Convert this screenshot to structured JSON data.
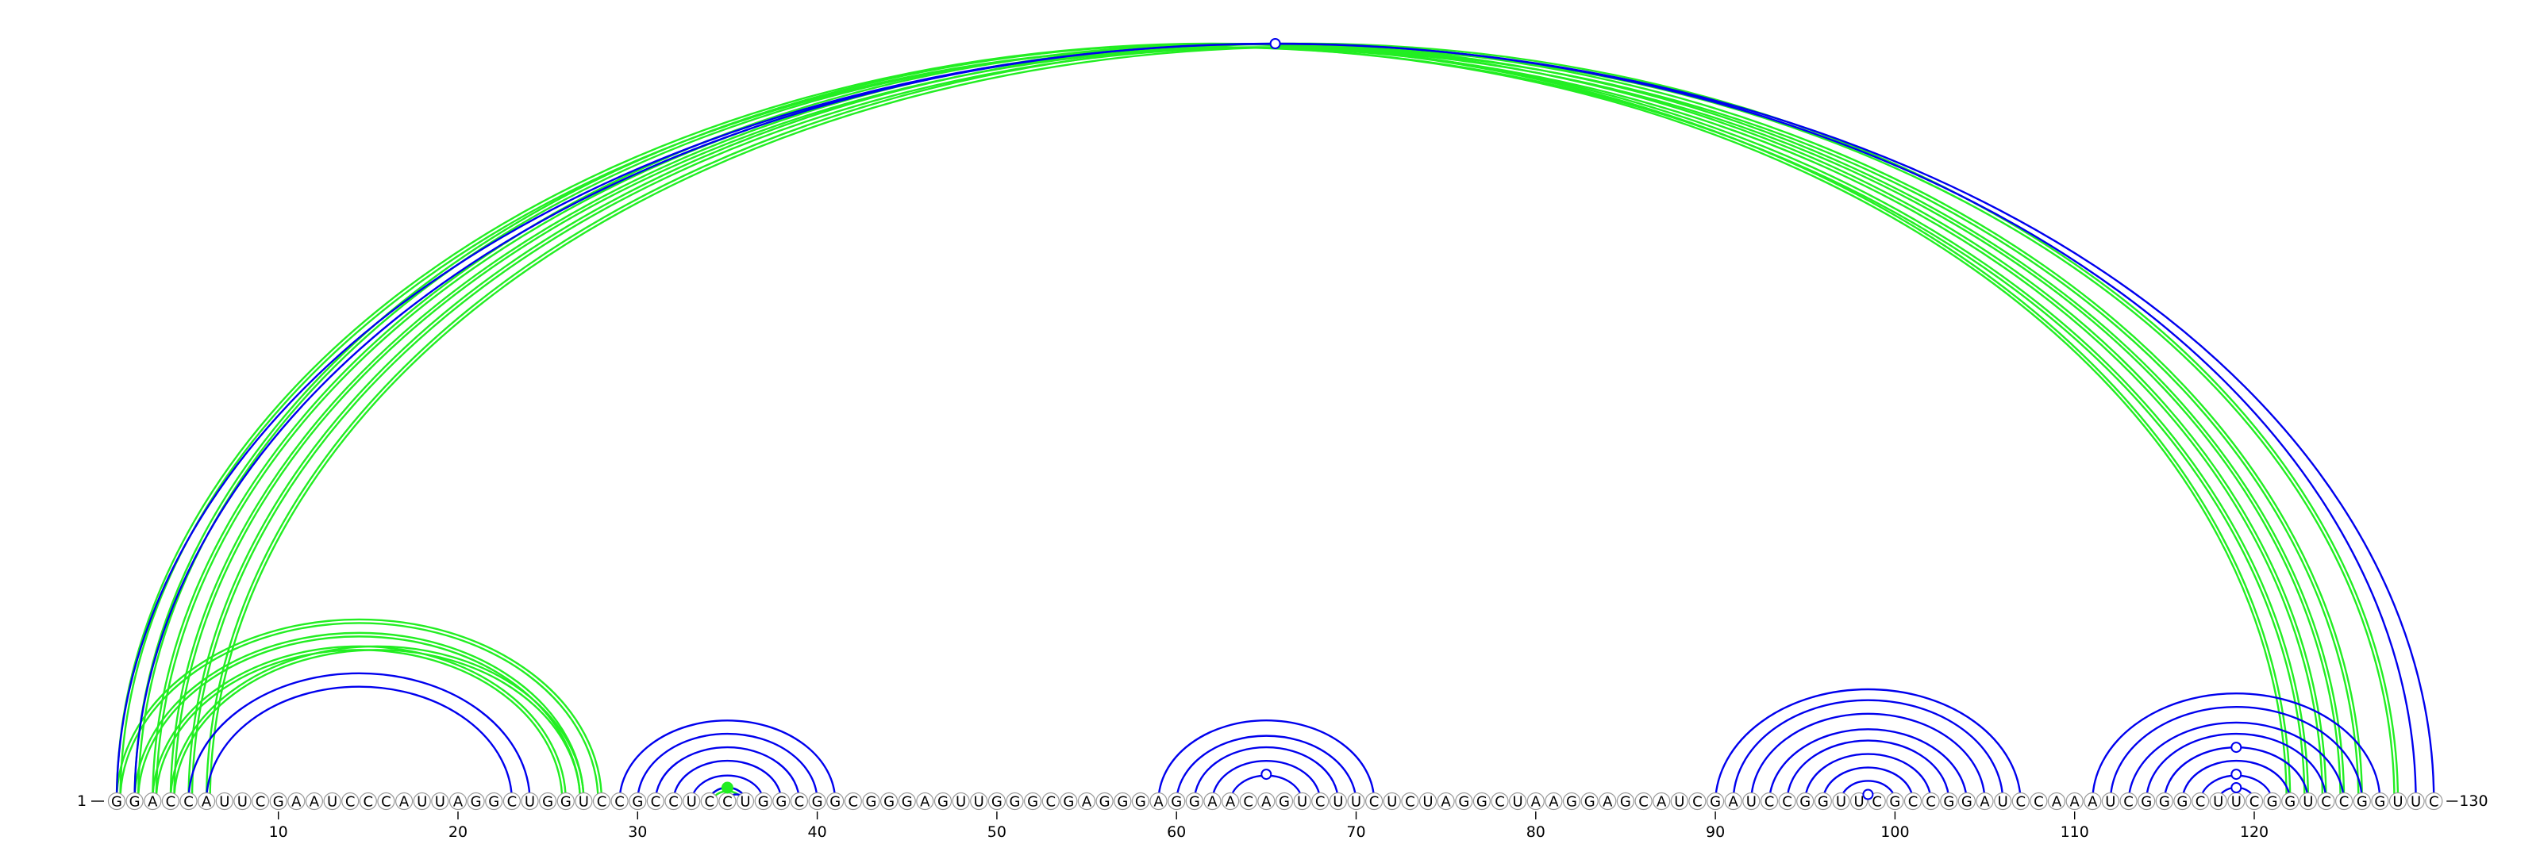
{
  "diagram": {
    "sequence": "GGACCAUUCGAAUCCCAUUAGGCUGGUCCGCCUCCUGGCGGCGGGAGUUGGGCGAGGGAGGAACAGUCUUCUCUAGGCUAAGGAGCAUCGAUCCGGUUCGCCGGAUCCAAAUCGGGCUUCGGUCCGGUUC",
    "start_label": "1",
    "end_label": "130",
    "tick_positions": [
      10,
      20,
      30,
      40,
      50,
      60,
      70,
      80,
      90,
      100,
      110,
      120
    ],
    "tick_labels": [
      "10",
      "20",
      "30",
      "40",
      "50",
      "60",
      "70",
      "80",
      "90",
      "100",
      "110",
      "120"
    ],
    "colors": {
      "blue_arcs": "#0000ee",
      "green_arcs": "#22ee22",
      "circle_stroke": "#9a9a9a"
    },
    "blue_pairs": [
      [
        1,
        130
      ],
      [
        2,
        129
      ],
      [
        5,
        24
      ],
      [
        6,
        23
      ],
      [
        29,
        41
      ],
      [
        30,
        40
      ],
      [
        31,
        39
      ],
      [
        32,
        38
      ],
      [
        33,
        37
      ],
      [
        34,
        36
      ],
      [
        35,
        36
      ],
      [
        59,
        71
      ],
      [
        60,
        70
      ],
      [
        61,
        69
      ],
      [
        62,
        68
      ],
      [
        63,
        67
      ],
      [
        90,
        107
      ],
      [
        91,
        106
      ],
      [
        92,
        105
      ],
      [
        93,
        104
      ],
      [
        94,
        103
      ],
      [
        95,
        102
      ],
      [
        96,
        101
      ],
      [
        97,
        100
      ],
      [
        98,
        99
      ],
      [
        111,
        127
      ],
      [
        112,
        126
      ],
      [
        113,
        125
      ],
      [
        114,
        124
      ],
      [
        115,
        123
      ],
      [
        116,
        122
      ],
      [
        117,
        121
      ],
      [
        118,
        120
      ]
    ],
    "green_pairs": [
      [
        1,
        123
      ],
      [
        1,
        28
      ],
      [
        2,
        122
      ],
      [
        2,
        27
      ],
      [
        3,
        124
      ],
      [
        3,
        26
      ],
      [
        4,
        125
      ],
      [
        4,
        27
      ],
      [
        5,
        126
      ],
      [
        6,
        128
      ],
      [
        34,
        36
      ]
    ],
    "markers": [
      {
        "pair": [
          1,
          130
        ],
        "color": "blue"
      },
      {
        "pair": [
          63,
          67
        ],
        "color": "blue"
      },
      {
        "pair": [
          98,
          99
        ],
        "color": "blue"
      },
      {
        "pair": [
          115,
          123
        ],
        "color": "blue"
      },
      {
        "pair": [
          117,
          121
        ],
        "color": "blue"
      },
      {
        "pair": [
          118,
          120
        ],
        "color": "blue"
      },
      {
        "pair": [
          34,
          36
        ],
        "color": "green"
      }
    ]
  }
}
